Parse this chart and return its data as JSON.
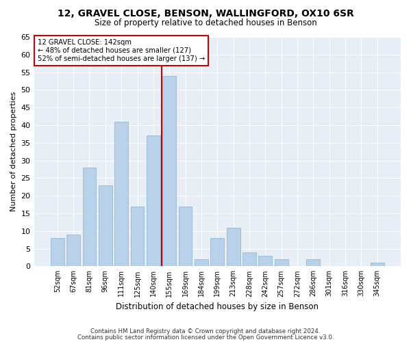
{
  "title1": "12, GRAVEL CLOSE, BENSON, WALLINGFORD, OX10 6SR",
  "title2": "Size of property relative to detached houses in Benson",
  "xlabel": "Distribution of detached houses by size in Benson",
  "ylabel": "Number of detached properties",
  "categories": [
    "52sqm",
    "67sqm",
    "81sqm",
    "96sqm",
    "111sqm",
    "125sqm",
    "140sqm",
    "155sqm",
    "169sqm",
    "184sqm",
    "199sqm",
    "213sqm",
    "228sqm",
    "242sqm",
    "257sqm",
    "272sqm",
    "286sqm",
    "301sqm",
    "316sqm",
    "330sqm",
    "345sqm"
  ],
  "values": [
    8,
    9,
    28,
    23,
    41,
    17,
    37,
    54,
    17,
    2,
    8,
    11,
    4,
    3,
    2,
    0,
    2,
    0,
    0,
    0,
    1
  ],
  "bar_color": "#b8d0e8",
  "bar_edge_color": "#8ab0d0",
  "ref_line_index": 6,
  "marker_label": "12 GRAVEL CLOSE: 142sqm",
  "annotation_line1": "← 48% of detached houses are smaller (127)",
  "annotation_line2": "52% of semi-detached houses are larger (137) →",
  "ref_line_color": "#cc0000",
  "annotation_box_edge": "#cc0000",
  "ylim": [
    0,
    65
  ],
  "yticks": [
    0,
    5,
    10,
    15,
    20,
    25,
    30,
    35,
    40,
    45,
    50,
    55,
    60,
    65
  ],
  "footer1": "Contains HM Land Registry data © Crown copyright and database right 2024.",
  "footer2": "Contains public sector information licensed under the Open Government Licence v3.0.",
  "bg_color": "#ffffff",
  "plot_bg_color": "#e8eef5"
}
